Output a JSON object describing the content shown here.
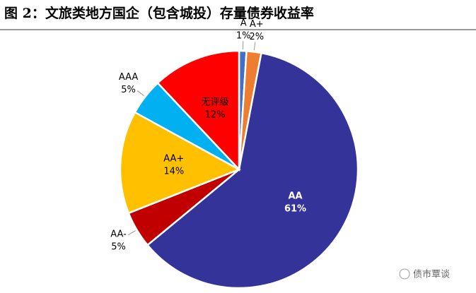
{
  "chart_data": {
    "type": "pie",
    "title": "图 2：文旅类地方国企（包含城投）存量债券收益率",
    "categories": [
      "A",
      "A+",
      "AA",
      "AA-",
      "AA+",
      "AAA",
      "无评级"
    ],
    "values": [
      1,
      2,
      61,
      5,
      14,
      5,
      12
    ],
    "value_labels": [
      "1%",
      "2%",
      "61%",
      "5%",
      "14%",
      "5%",
      "12%"
    ],
    "colors": [
      "#3f6fc6",
      "#ed7d31",
      "#333399",
      "#c00000",
      "#ffc000",
      "#00b0f0",
      "#ff0000"
    ],
    "watermark": "债市覃谈"
  }
}
